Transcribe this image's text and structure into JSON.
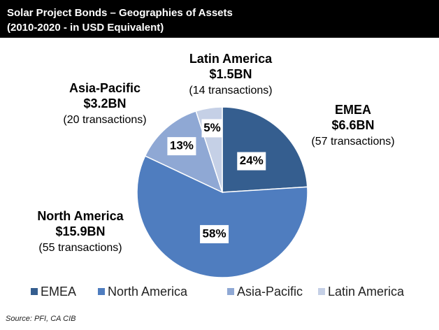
{
  "chart_data": {
    "type": "pie",
    "title": "Solar Project Bonds – Geographies of Assets",
    "subtitle": "(2010-2020 - in USD Equivalent)",
    "categories": [
      "EMEA",
      "North America",
      "Asia-Pacific",
      "Latin America"
    ],
    "values": [
      24,
      58,
      13,
      5
    ],
    "value_labels": [
      "24%",
      "58%",
      "13%",
      "5%"
    ],
    "colors": [
      "#355e8f",
      "#4f7dbf",
      "#8fa8d4",
      "#c5d0e6"
    ],
    "amounts": [
      "$6.6BN",
      "$15.9BN",
      "$3.2BN",
      "$1.5BN"
    ],
    "transactions": [
      "(57 transactions)",
      "(55 transactions)",
      "(20 transactions)",
      "(14 transactions)"
    ],
    "legend": "bottom",
    "source": "Source: PFI, CA CIB"
  }
}
